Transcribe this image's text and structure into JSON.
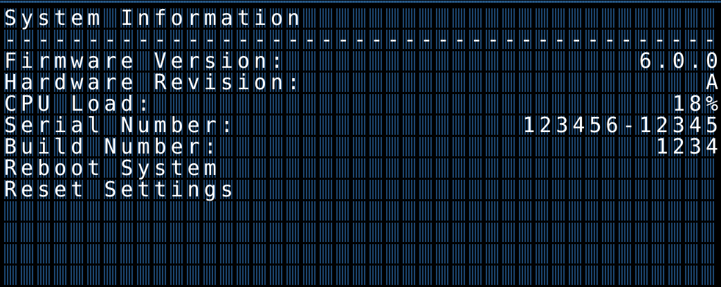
{
  "title": "System Information",
  "separator": "-------------------------------------------",
  "items": [
    {
      "label": "Firmware Version:",
      "value": "6.0.0"
    },
    {
      "label": "Hardware Revision:",
      "value": "A"
    },
    {
      "label": "CPU Load:",
      "value": "18%"
    },
    {
      "label": "Serial Number:",
      "value": "123456-12345"
    },
    {
      "label": "Build Number:",
      "value": "1234"
    },
    {
      "label": "Reboot System",
      "value": ""
    },
    {
      "label": "Reset Settings",
      "value": ""
    }
  ],
  "colors": {
    "pixel_off": "#1c4670",
    "pixel_on": "#ffffff",
    "background": "#000000"
  }
}
